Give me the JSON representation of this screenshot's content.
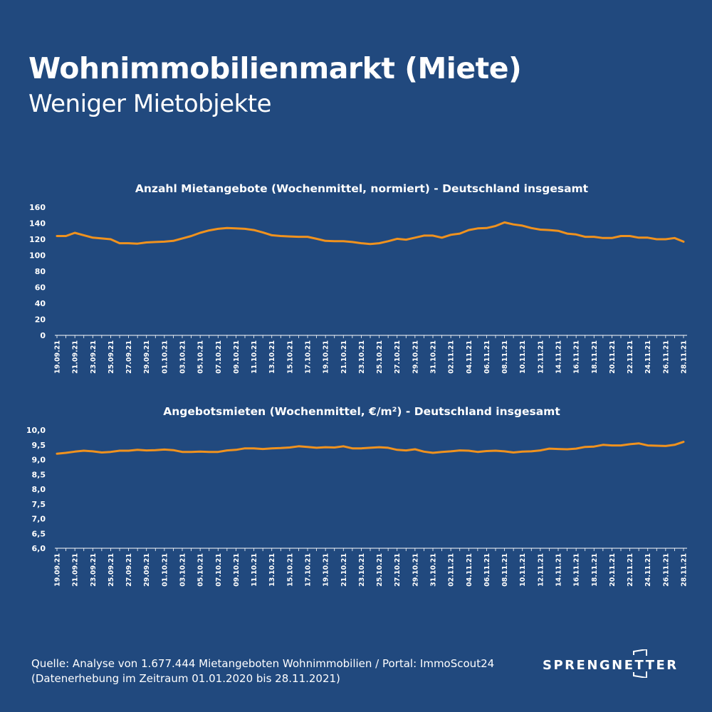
{
  "header": {
    "title": "Wohnimmobilienmarkt (Miete)",
    "subtitle": "Weniger Mietobjekte"
  },
  "colors": {
    "background": "#21497e",
    "line": "#f0921e",
    "text": "#ffffff"
  },
  "chart_data": [
    {
      "type": "line",
      "title": "Anzahl Mietangebote (Wochenmittel, normiert) - Deutschland insgesamt",
      "ylim": [
        0,
        160
      ],
      "yticks": [
        "0",
        "20",
        "40",
        "60",
        "80",
        "100",
        "120",
        "140",
        "160"
      ],
      "grid": false,
      "tick_labels": [
        "19.09.21",
        "21.09.21",
        "23.09.21",
        "25.09.21",
        "27.09.21",
        "29.09.21",
        "01.10.21",
        "03.10.21",
        "05.10.21",
        "07.10.21",
        "09.10.21",
        "11.10.21",
        "13.10.21",
        "15.10.21",
        "17.10.21",
        "19.10.21",
        "21.10.21",
        "23.10.21",
        "25.10.21",
        "27.10.21",
        "29.10.21",
        "31.10.21",
        "02.11.21",
        "04.11.21",
        "06.11.21",
        "08.11.21",
        "10.11.21",
        "12.11.21",
        "14.11.21",
        "16.11.21",
        "18.11.21",
        "20.11.21",
        "22.11.21",
        "24.11.21",
        "26.11.21",
        "28.11.21"
      ],
      "x_range": [
        "19.09.21",
        "28.11.21"
      ],
      "values": [
        124,
        124,
        128,
        125,
        122,
        121,
        120,
        115,
        115,
        114.5,
        116,
        116.5,
        117,
        118,
        121,
        124,
        128,
        131,
        133,
        134,
        133.5,
        133,
        131.5,
        128.5,
        125,
        124,
        123.5,
        123,
        123,
        120.5,
        118,
        117.5,
        117.5,
        116.5,
        115,
        114,
        115,
        117.5,
        120.5,
        119.5,
        122,
        124.5,
        124.5,
        122,
        125.5,
        127,
        131.5,
        133.5,
        134,
        136.5,
        141,
        138.5,
        137,
        134,
        132,
        131.5,
        130.5,
        127,
        126,
        123,
        123,
        121.5,
        121.5,
        124,
        124,
        122,
        122,
        120,
        120,
        121.5,
        117
      ]
    },
    {
      "type": "line",
      "title": "Angebotsmieten (Wochenmittel, €/m²) - Deutschland insgesamt",
      "ylim": [
        6.0,
        10.0
      ],
      "yticks": [
        "6,0",
        "6,5",
        "7,0",
        "7,5",
        "8,0",
        "8,5",
        "9,0",
        "9,5",
        "10,0"
      ],
      "grid": false,
      "tick_labels": [
        "19.09.21",
        "21.09.21",
        "23.09.21",
        "25.09.21",
        "27.09.21",
        "29.09.21",
        "01.10.21",
        "03.10.21",
        "05.10.21",
        "07.10.21",
        "09.10.21",
        "11.10.21",
        "13.10.21",
        "15.10.21",
        "17.10.21",
        "19.10.21",
        "21.10.21",
        "23.10.21",
        "25.10.21",
        "27.10.21",
        "29.10.21",
        "31.10.21",
        "02.11.21",
        "04.11.21",
        "06.11.21",
        "08.11.21",
        "10.11.21",
        "12.11.21",
        "14.11.21",
        "16.11.21",
        "18.11.21",
        "20.11.21",
        "22.11.21",
        "24.11.21",
        "26.11.21",
        "28.11.21"
      ],
      "x_range": [
        "19.09.21",
        "28.11.21"
      ],
      "values": [
        9.2,
        9.23,
        9.27,
        9.3,
        9.28,
        9.24,
        9.26,
        9.3,
        9.3,
        9.33,
        9.31,
        9.32,
        9.34,
        9.32,
        9.26,
        9.26,
        9.27,
        9.26,
        9.26,
        9.31,
        9.33,
        9.38,
        9.38,
        9.36,
        9.38,
        9.39,
        9.41,
        9.45,
        9.43,
        9.4,
        9.42,
        9.41,
        9.45,
        9.38,
        9.38,
        9.4,
        9.42,
        9.4,
        9.33,
        9.31,
        9.35,
        9.27,
        9.23,
        9.26,
        9.28,
        9.31,
        9.3,
        9.26,
        9.29,
        9.3,
        9.28,
        9.24,
        9.27,
        9.28,
        9.31,
        9.37,
        9.36,
        9.35,
        9.37,
        9.43,
        9.44,
        9.5,
        9.48,
        9.48,
        9.52,
        9.55,
        9.48,
        9.47,
        9.46,
        9.5,
        9.6
      ]
    }
  ],
  "footer": {
    "source_line1": "Quelle: Analyse von 1.677.444 Mietangeboten Wohnimmobilien / Portal: ImmoScout24",
    "source_line2": "(Datenerhebung im Zeitraum 01.01.2020 bis  28.11.2021)",
    "logo": "SPRENGNETTER"
  }
}
